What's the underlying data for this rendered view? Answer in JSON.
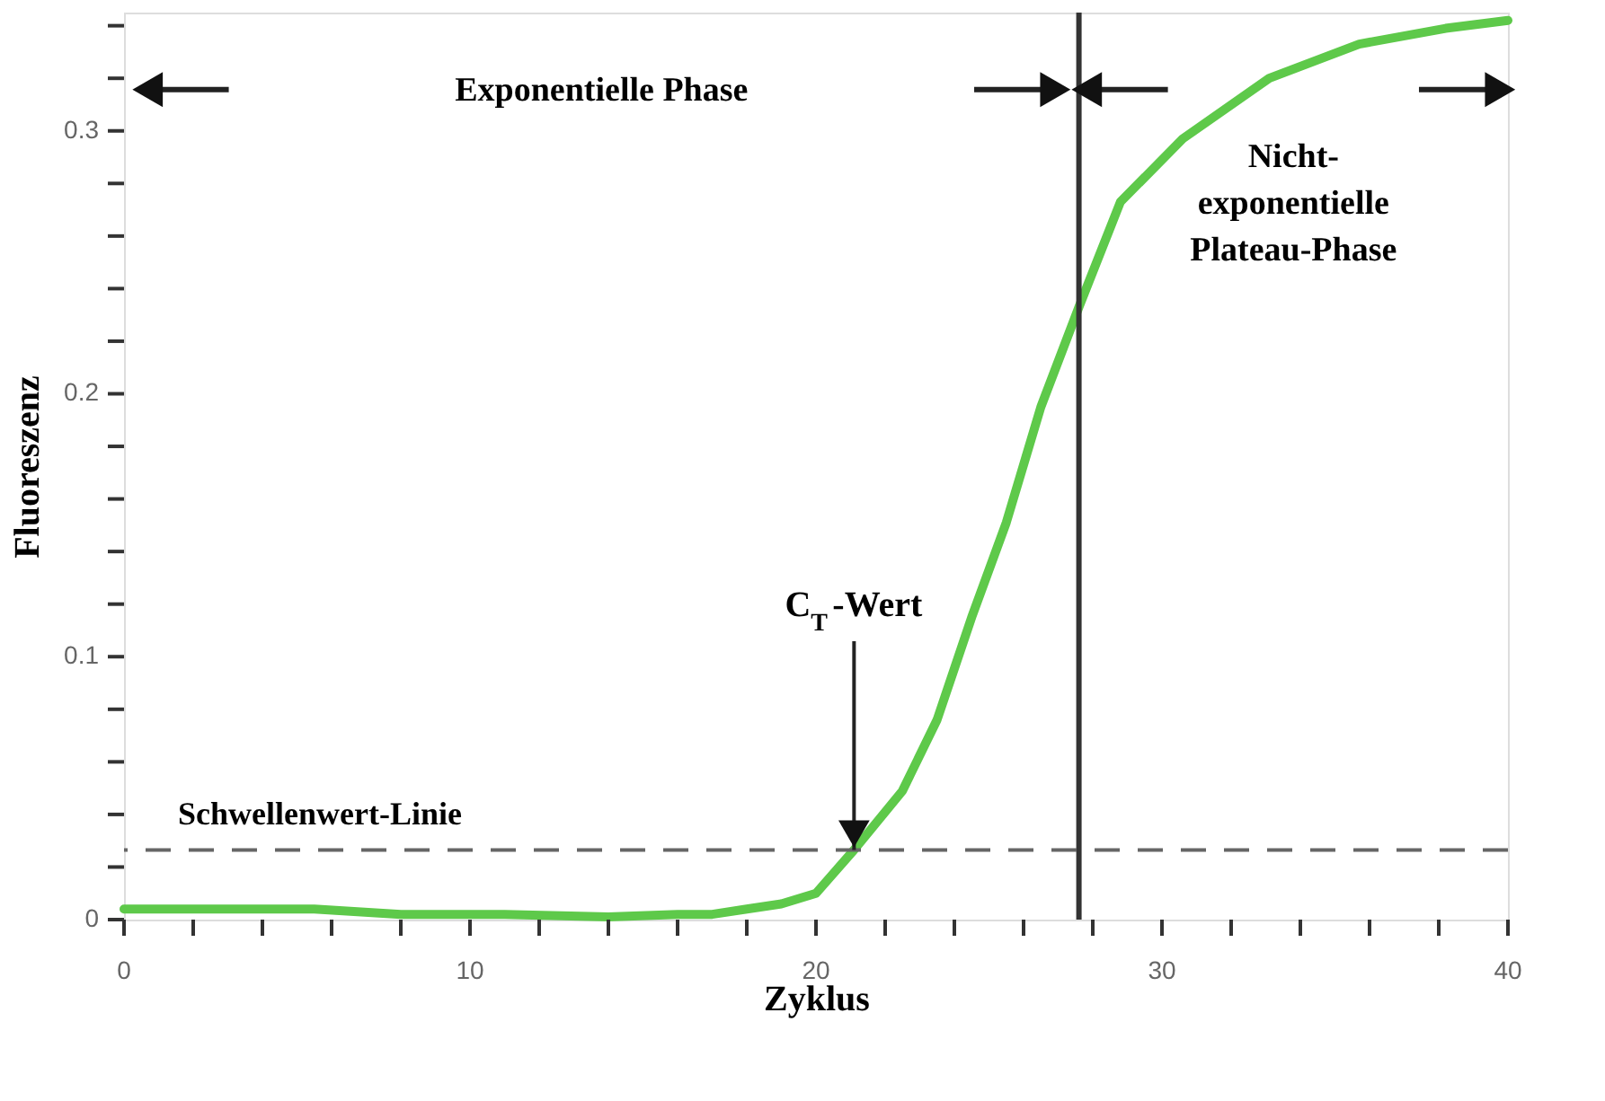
{
  "chart_data": {
    "type": "line",
    "xlabel": "Zyklus",
    "ylabel": "Fluoreszenz",
    "x": [
      0,
      2,
      4,
      5.5,
      8,
      11,
      14,
      16,
      17,
      18,
      19,
      20,
      21.1,
      22.5,
      23.5,
      24.5,
      25.5,
      26.5,
      27.6,
      28.8,
      30.6,
      33.1,
      35.7,
      38.2,
      40
    ],
    "series": [
      {
        "color": "#5ec94a",
        "values": [
          0.004,
          0.004,
          0.004,
          0.004,
          0.002,
          0.002,
          0.001,
          0.002,
          0.002,
          0.004,
          0.006,
          0.01,
          0.0265,
          0.049,
          0.076,
          0.115,
          0.151,
          0.195,
          0.233,
          0.273,
          0.297,
          0.32,
          0.333,
          0.339,
          0.342
        ]
      }
    ],
    "xlim": [
      0,
      40
    ],
    "xticks": [
      0,
      {
        "value": 2,
        "label": null
      },
      {
        "value": 4,
        "label": null
      },
      {
        "value": 6,
        "label": null
      },
      {
        "value": 8,
        "label": null
      },
      10,
      {
        "value": 12,
        "label": null
      },
      {
        "value": 14,
        "label": null
      },
      {
        "value": 16,
        "label": null
      },
      {
        "value": 18,
        "label": null
      },
      20,
      {
        "value": 22,
        "label": null
      },
      {
        "value": 24,
        "label": null
      },
      {
        "value": 26,
        "label": null
      },
      {
        "value": 28,
        "label": null
      },
      30,
      {
        "value": 32,
        "label": null
      },
      {
        "value": 34,
        "label": null
      },
      {
        "value": 36,
        "label": null
      },
      {
        "value": 38,
        "label": null
      },
      40
    ],
    "ylim": [
      0,
      0.345
    ],
    "yticks": [
      0,
      {
        "value": 0.02,
        "label": null
      },
      {
        "value": 0.04,
        "label": null
      },
      {
        "value": 0.06,
        "label": null
      },
      {
        "value": 0.08,
        "label": null
      },
      0.1,
      {
        "value": 0.12,
        "label": null
      },
      {
        "value": 0.14,
        "label": null
      },
      {
        "value": 0.16,
        "label": null
      },
      {
        "value": 0.18,
        "label": null
      },
      0.2,
      {
        "value": 0.22,
        "label": null
      },
      {
        "value": 0.24,
        "label": null
      },
      {
        "value": 0.26,
        "label": null
      },
      {
        "value": 0.28,
        "label": null
      },
      0.3,
      {
        "value": 0.32,
        "label": null
      },
      {
        "value": 0.34,
        "label": null
      }
    ],
    "ref_lines": [
      {
        "axis": "x",
        "value": 27.6,
        "color": "#333333",
        "line_style": "solid"
      },
      {
        "axis": "y",
        "value": 0.0265,
        "label": "Schwellenwert-Linie",
        "color": "#666666",
        "line_style": "dashed"
      }
    ],
    "annotations": [
      "Exponentielle Phase",
      "Nicht-\nexponentielle\nPlateau-Phase",
      {
        "text": "C$_{T}$-Wert",
        "x": 21.1,
        "y": 0.0265
      }
    ],
    "grid": false,
    "marker": "none",
    "line_style": "solid"
  }
}
